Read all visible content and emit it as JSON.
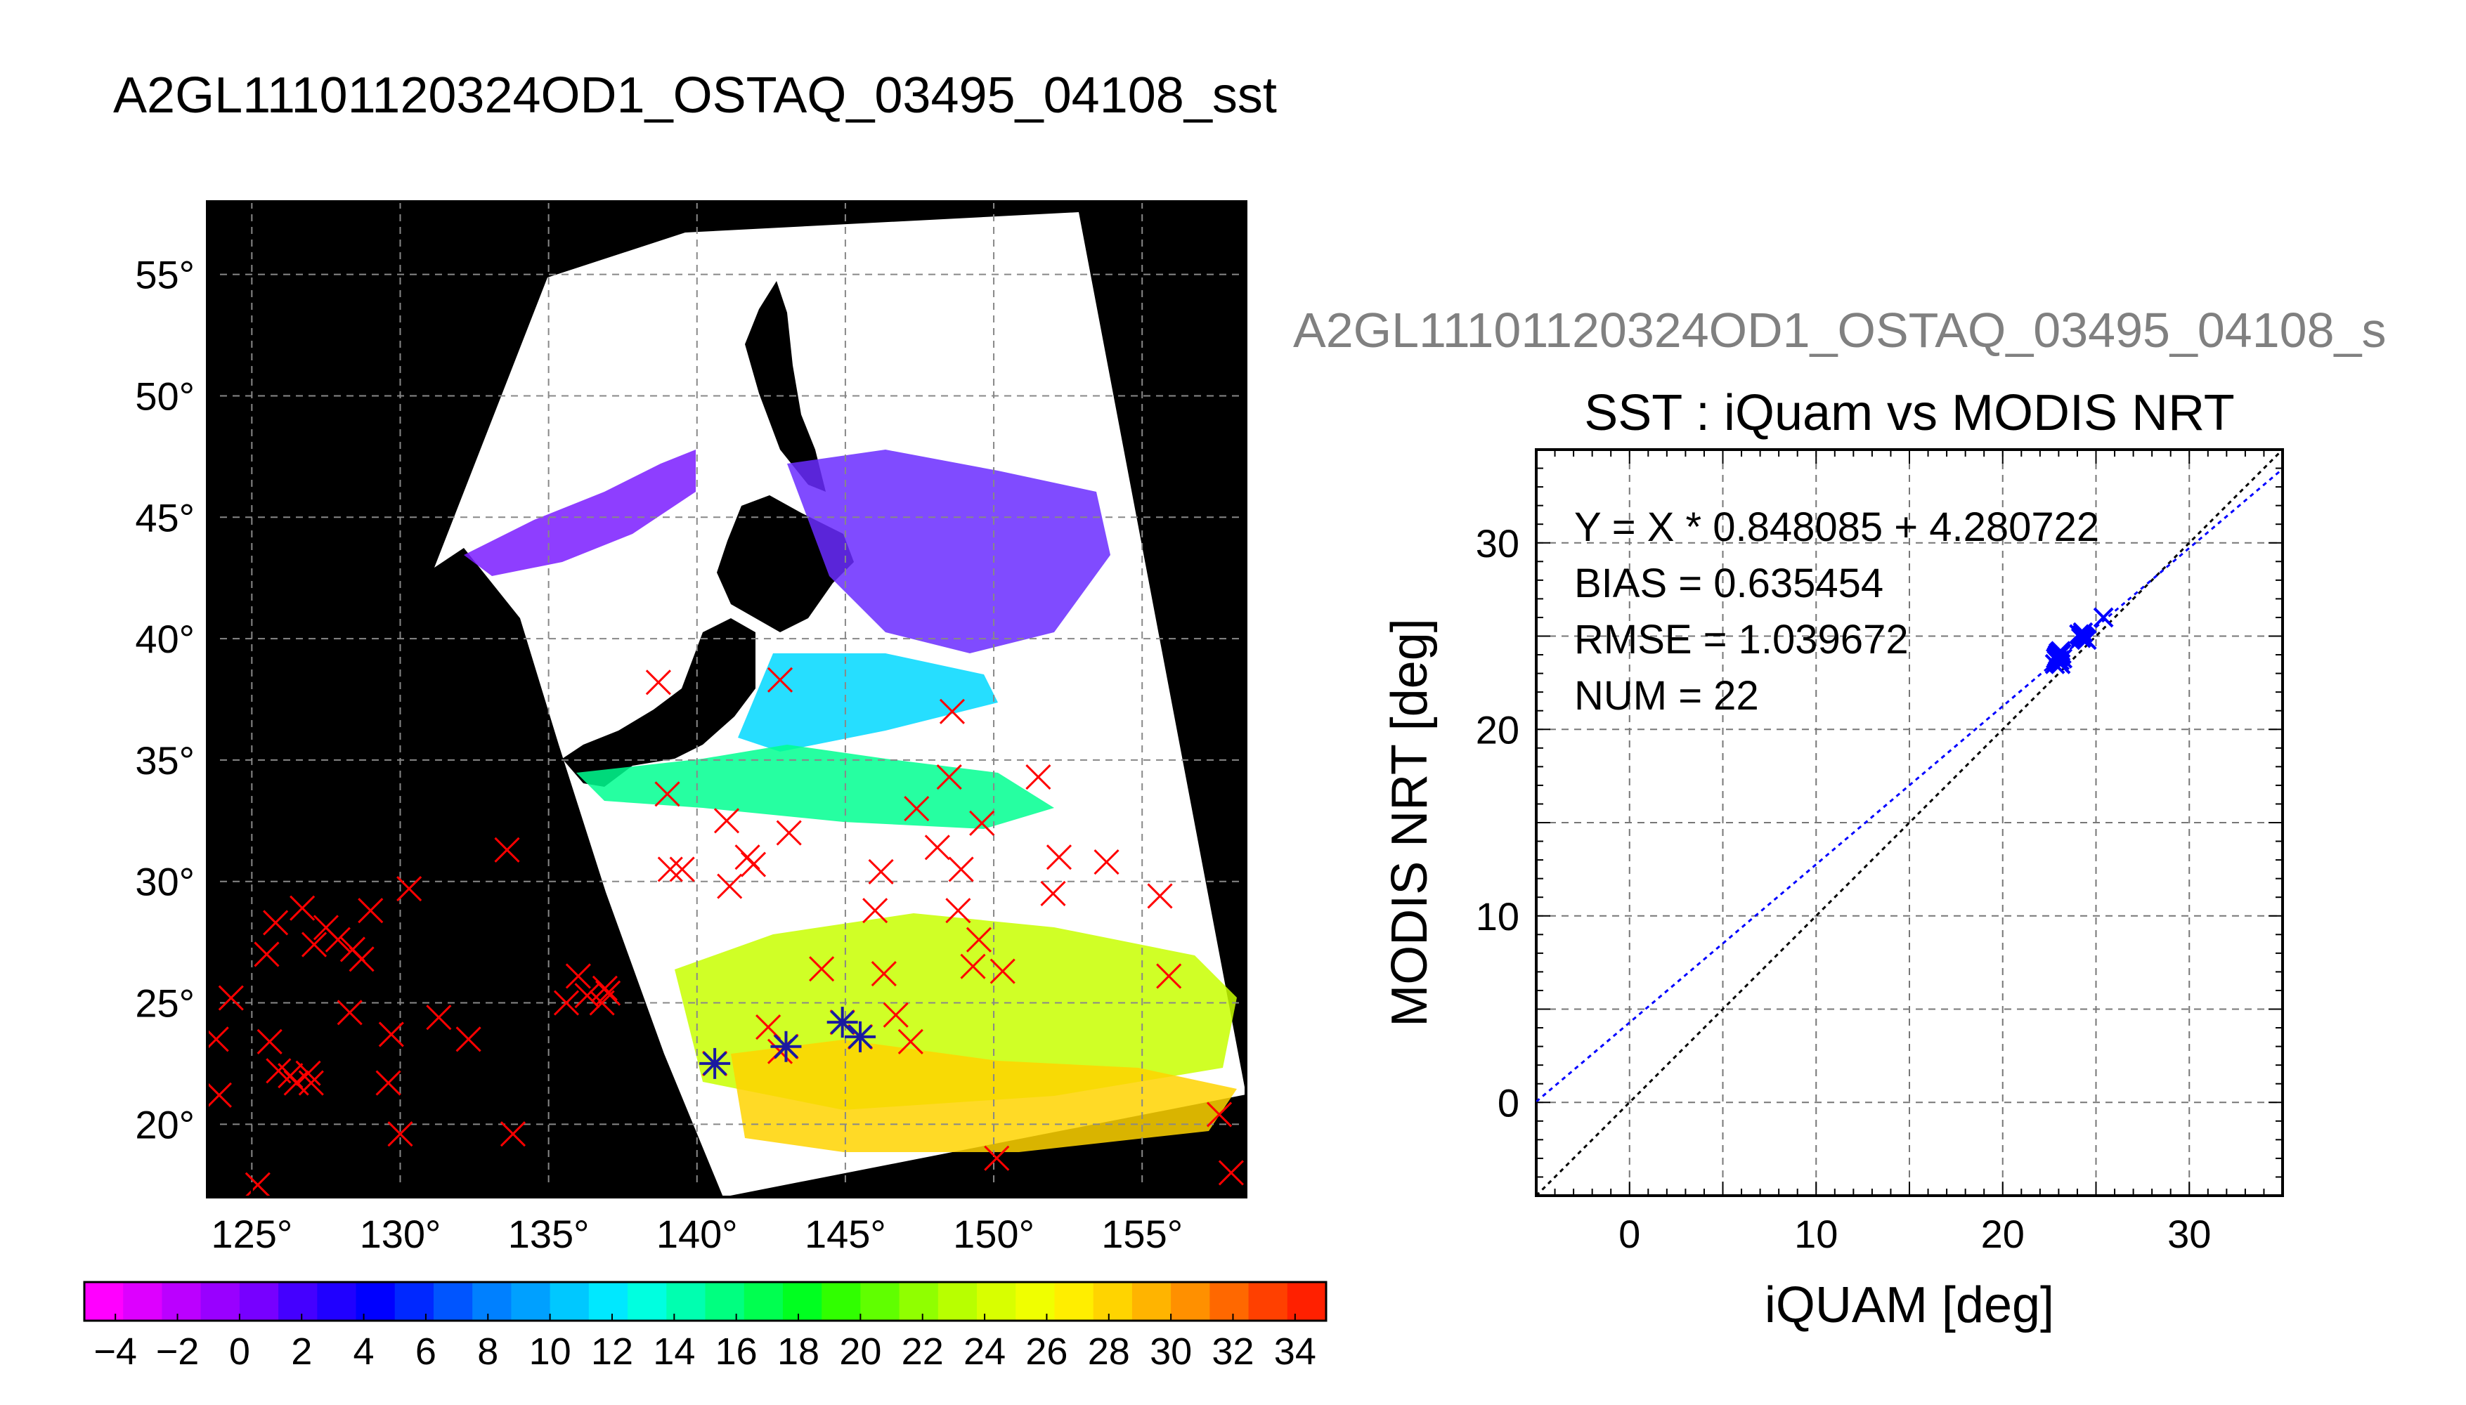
{
  "title": "A2GL11101120324OD1_OSTAQ_03495_04108_sst",
  "map": {
    "lat_ticks": [
      20,
      25,
      30,
      35,
      40,
      45,
      50,
      55
    ],
    "lon_ticks": [
      125,
      130,
      135,
      140,
      145,
      150,
      155
    ],
    "lon_range": [
      123.5,
      158.5
    ],
    "lat_range": [
      17,
      58
    ],
    "degree_symbol": "°",
    "grid": true,
    "background_color": "#000000",
    "swath_color": "#ffffff",
    "sst_markers": [
      [
        124.3,
        25.2
      ],
      [
        123.8,
        23.5
      ],
      [
        123.9,
        21.2
      ],
      [
        125.8,
        28.3
      ],
      [
        125.5,
        27.0
      ],
      [
        125.6,
        23.4
      ],
      [
        125.9,
        22.2
      ],
      [
        126.5,
        21.7
      ],
      [
        126.3,
        22.0
      ],
      [
        126.9,
        22.1
      ],
      [
        127.0,
        21.7
      ],
      [
        126.7,
        28.9
      ],
      [
        127.5,
        28.1
      ],
      [
        127.9,
        27.6
      ],
      [
        128.4,
        27.2
      ],
      [
        128.7,
        26.8
      ],
      [
        127.1,
        27.4
      ],
      [
        129.0,
        28.8
      ],
      [
        128.3,
        24.6
      ],
      [
        129.7,
        23.7
      ],
      [
        129.6,
        21.7
      ],
      [
        130.3,
        29.7
      ],
      [
        130.0,
        19.6
      ],
      [
        131.3,
        24.4
      ],
      [
        132.3,
        23.5
      ],
      [
        133.6,
        31.3
      ],
      [
        133.8,
        19.6
      ],
      [
        135.6,
        25.0
      ],
      [
        136.0,
        26.1
      ],
      [
        136.3,
        25.3
      ],
      [
        136.9,
        25.6
      ],
      [
        136.8,
        25.0
      ],
      [
        137.0,
        25.4
      ],
      [
        125.2,
        17.5
      ],
      [
        138.7,
        38.2
      ],
      [
        140.6,
        22.5
      ],
      [
        142.8,
        38.3
      ],
      [
        143.0,
        23.2
      ],
      [
        142.4,
        24.0
      ],
      [
        139.0,
        33.6
      ],
      [
        139.1,
        30.5
      ],
      [
        139.5,
        30.5
      ],
      [
        141.7,
        31.0
      ],
      [
        141.9,
        30.7
      ],
      [
        141.0,
        32.5
      ],
      [
        143.1,
        32.0
      ],
      [
        141.1,
        29.8
      ],
      [
        142.8,
        23.0
      ],
      [
        144.2,
        26.4
      ],
      [
        144.9,
        24.2
      ],
      [
        145.5,
        23.6
      ],
      [
        146.0,
        28.8
      ],
      [
        146.3,
        26.2
      ],
      [
        146.7,
        24.5
      ],
      [
        146.2,
        30.4
      ],
      [
        147.2,
        23.4
      ],
      [
        147.4,
        33.0
      ],
      [
        148.1,
        31.4
      ],
      [
        148.5,
        34.3
      ],
      [
        148.6,
        37.0
      ],
      [
        148.8,
        28.8
      ],
      [
        148.9,
        30.5
      ],
      [
        149.3,
        26.5
      ],
      [
        149.6,
        32.4
      ],
      [
        149.5,
        27.6
      ],
      [
        150.3,
        26.3
      ],
      [
        151.5,
        34.3
      ],
      [
        150.1,
        18.6
      ],
      [
        152.2,
        31.0
      ],
      [
        152.0,
        29.5
      ],
      [
        153.8,
        30.8
      ],
      [
        155.6,
        29.4
      ],
      [
        155.9,
        26.1
      ],
      [
        157.6,
        20.4
      ],
      [
        158.0,
        18.0
      ]
    ],
    "matched_markers": [
      [
        140.6,
        22.5
      ],
      [
        143.0,
        23.2
      ],
      [
        144.9,
        24.2
      ],
      [
        145.5,
        23.6
      ]
    ],
    "marker_color": "#ff0000",
    "matched_color": "#1a1aa0"
  },
  "colorbar": {
    "ticks": [
      "−4",
      "−2",
      "0",
      "2",
      "4",
      "6",
      "8",
      "10",
      "12",
      "14",
      "16",
      "18",
      "20",
      "22",
      "24",
      "26",
      "28",
      "30",
      "32",
      "34"
    ],
    "range": [
      -5,
      35
    ],
    "colors": [
      "#ff00ff",
      "#dd00ff",
      "#bb00ff",
      "#9900ff",
      "#7700ff",
      "#4400ff",
      "#2000ff",
      "#0000ff",
      "#0028ff",
      "#0055ff",
      "#0080ff",
      "#00a0ff",
      "#00c8ff",
      "#00e8ff",
      "#00ffe0",
      "#00ffb0",
      "#00ff80",
      "#00ff50",
      "#00ff20",
      "#30ff00",
      "#60ff00",
      "#90ff00",
      "#b8ff00",
      "#d8ff00",
      "#f0ff00",
      "#ffee00",
      "#ffd400",
      "#ffb400",
      "#ff9000",
      "#ff6800",
      "#ff4000",
      "#ff2000"
    ]
  },
  "chart_data": {
    "type": "scatter",
    "title": "SST : iQuam vs MODIS NRT",
    "ghost_title": "A2GL11101120324OD1_OSTAQ_03495_04108_s",
    "xlabel": "iQUAM [deg]",
    "ylabel": "MODIS NRT [deg]",
    "xlim": [
      -5,
      35
    ],
    "ylim": [
      -5,
      35
    ],
    "xticks": [
      0,
      10,
      20,
      30
    ],
    "yticks": [
      0,
      10,
      20,
      30
    ],
    "grid": true,
    "annotations": [
      "Y = X * 0.848085 + 4.280722",
      "BIAS = 0.635454",
      "RMSE = 1.039672",
      "NUM = 22"
    ],
    "fit": {
      "slope": 0.848085,
      "intercept": 4.280722,
      "color": "#0000ff"
    },
    "identity_line": {
      "slope": 1,
      "intercept": 0,
      "color": "#000000"
    },
    "points": [
      [
        22.9,
        23.9
      ],
      [
        23.0,
        23.6
      ],
      [
        23.1,
        24.2
      ],
      [
        22.8,
        23.5
      ],
      [
        23.2,
        23.8
      ],
      [
        22.95,
        24.0
      ],
      [
        23.05,
        23.7
      ],
      [
        23.1,
        23.5
      ],
      [
        22.9,
        23.7
      ],
      [
        24.2,
        25.0
      ],
      [
        24.4,
        24.9
      ],
      [
        24.1,
        25.1
      ],
      [
        24.3,
        25.2
      ],
      [
        24.5,
        24.8
      ],
      [
        25.4,
        26.0
      ],
      [
        23.0,
        23.9
      ],
      [
        23.15,
        24.05
      ],
      [
        22.85,
        23.8
      ],
      [
        24.25,
        25.05
      ],
      [
        24.35,
        24.95
      ],
      [
        23.0,
        24.1
      ],
      [
        24.2,
        24.9
      ]
    ],
    "point_color": "#0000ff"
  }
}
